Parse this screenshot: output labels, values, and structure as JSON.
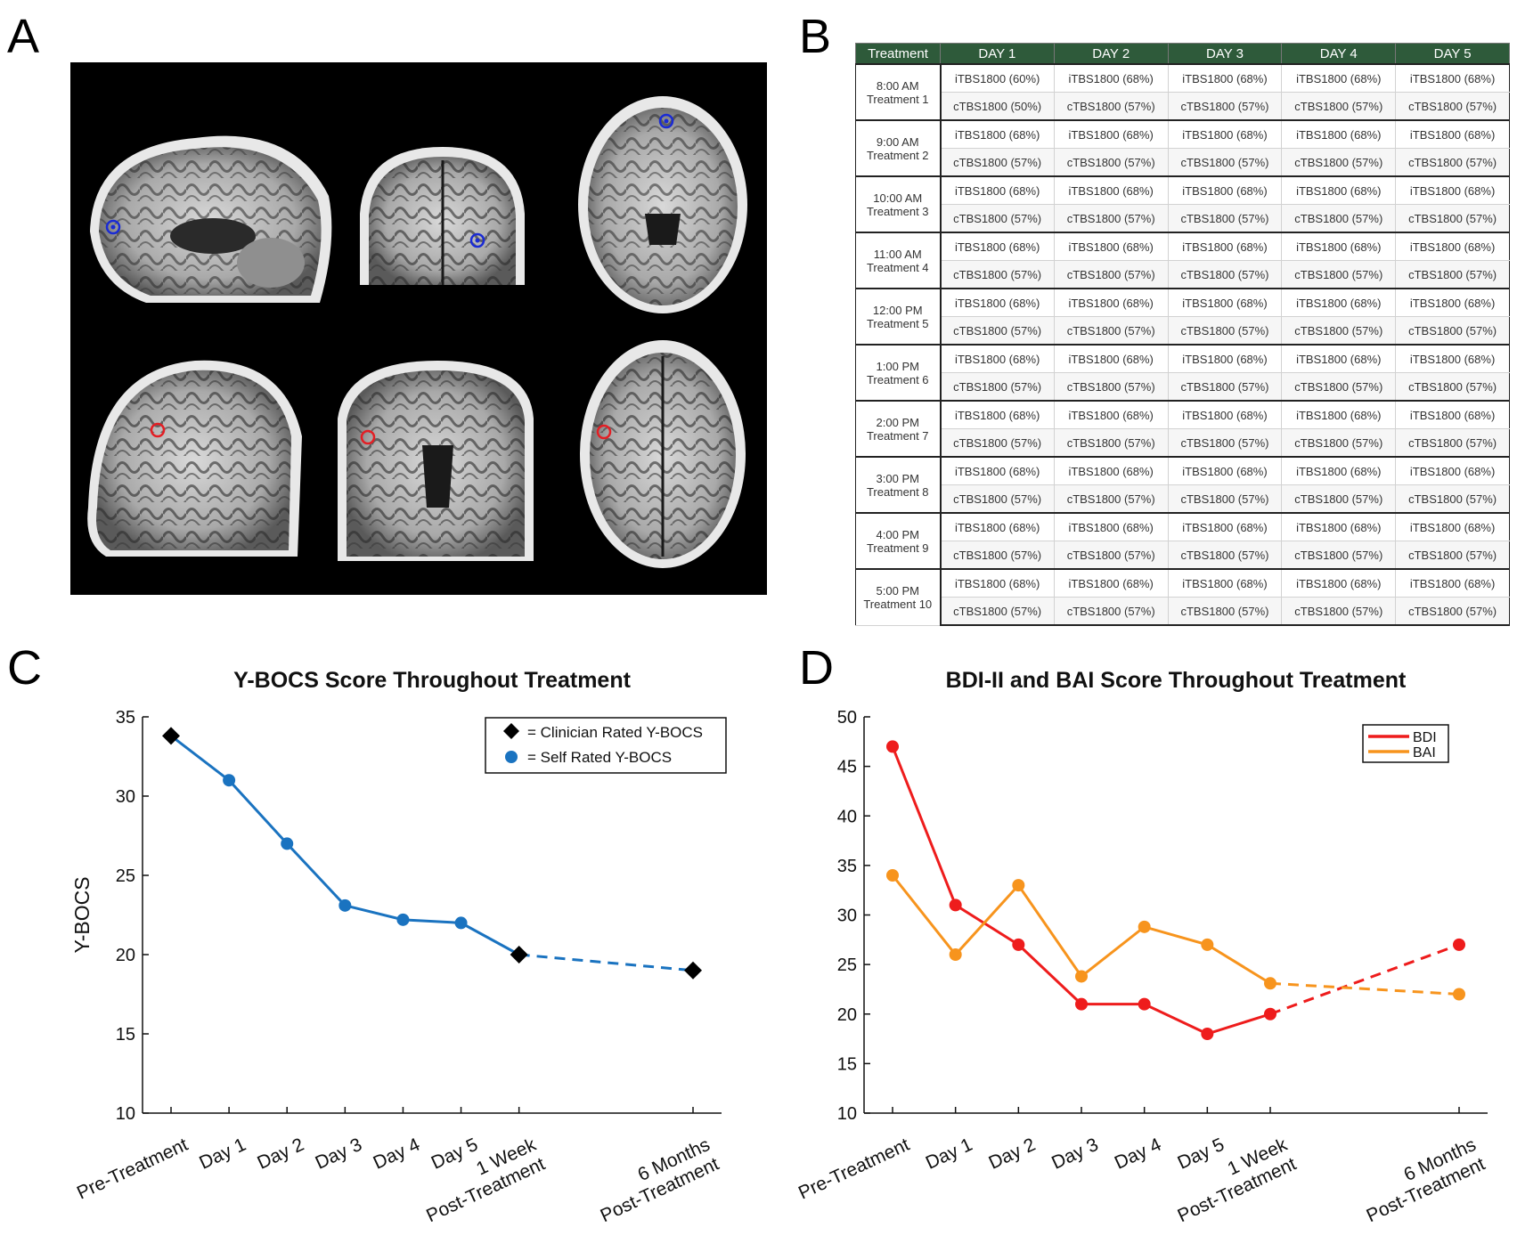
{
  "panels": {
    "a": "A",
    "b": "B",
    "c": "C",
    "d": "D"
  },
  "treatment_table": {
    "header": [
      "Treatment",
      "DAY 1",
      "DAY 2",
      "DAY 3",
      "DAY 4",
      "DAY 5"
    ],
    "slots": [
      {
        "time": "8:00 AM",
        "label": "Treatment 1",
        "itbs": [
          "iTBS1800 (60%)",
          "iTBS1800 (68%)",
          "iTBS1800 (68%)",
          "iTBS1800 (68%)",
          "iTBS1800 (68%)"
        ],
        "ctbs": [
          "cTBS1800 (50%)",
          "cTBS1800 (57%)",
          "cTBS1800 (57%)",
          "cTBS1800 (57%)",
          "cTBS1800 (57%)"
        ]
      },
      {
        "time": "9:00 AM",
        "label": "Treatment 2",
        "itbs": [
          "iTBS1800 (68%)",
          "iTBS1800 (68%)",
          "iTBS1800 (68%)",
          "iTBS1800 (68%)",
          "iTBS1800 (68%)"
        ],
        "ctbs": [
          "cTBS1800 (57%)",
          "cTBS1800 (57%)",
          "cTBS1800 (57%)",
          "cTBS1800 (57%)",
          "cTBS1800 (57%)"
        ]
      },
      {
        "time": "10:00 AM",
        "label": "Treatment 3",
        "itbs": [
          "iTBS1800 (68%)",
          "iTBS1800 (68%)",
          "iTBS1800 (68%)",
          "iTBS1800 (68%)",
          "iTBS1800 (68%)"
        ],
        "ctbs": [
          "cTBS1800 (57%)",
          "cTBS1800 (57%)",
          "cTBS1800 (57%)",
          "cTBS1800 (57%)",
          "cTBS1800 (57%)"
        ]
      },
      {
        "time": "11:00 AM",
        "label": "Treatment 4",
        "itbs": [
          "iTBS1800 (68%)",
          "iTBS1800 (68%)",
          "iTBS1800 (68%)",
          "iTBS1800 (68%)",
          "iTBS1800 (68%)"
        ],
        "ctbs": [
          "cTBS1800 (57%)",
          "cTBS1800 (57%)",
          "cTBS1800 (57%)",
          "cTBS1800 (57%)",
          "cTBS1800 (57%)"
        ]
      },
      {
        "time": "12:00 PM",
        "label": "Treatment 5",
        "itbs": [
          "iTBS1800 (68%)",
          "iTBS1800 (68%)",
          "iTBS1800 (68%)",
          "iTBS1800 (68%)",
          "iTBS1800 (68%)"
        ],
        "ctbs": [
          "cTBS1800 (57%)",
          "cTBS1800 (57%)",
          "cTBS1800 (57%)",
          "cTBS1800 (57%)",
          "cTBS1800 (57%)"
        ]
      },
      {
        "time": "1:00 PM",
        "label": "Treatment 6",
        "itbs": [
          "iTBS1800 (68%)",
          "iTBS1800 (68%)",
          "iTBS1800 (68%)",
          "iTBS1800 (68%)",
          "iTBS1800 (68%)"
        ],
        "ctbs": [
          "cTBS1800 (57%)",
          "cTBS1800 (57%)",
          "cTBS1800 (57%)",
          "cTBS1800 (57%)",
          "cTBS1800 (57%)"
        ]
      },
      {
        "time": "2:00 PM",
        "label": "Treatment 7",
        "itbs": [
          "iTBS1800 (68%)",
          "iTBS1800 (68%)",
          "iTBS1800 (68%)",
          "iTBS1800 (68%)",
          "iTBS1800 (68%)"
        ],
        "ctbs": [
          "cTBS1800 (57%)",
          "cTBS1800 (57%)",
          "cTBS1800 (57%)",
          "cTBS1800 (57%)",
          "cTBS1800 (57%)"
        ]
      },
      {
        "time": "3:00 PM",
        "label": "Treatment 8",
        "itbs": [
          "iTBS1800 (68%)",
          "iTBS1800 (68%)",
          "iTBS1800 (68%)",
          "iTBS1800 (68%)",
          "iTBS1800 (68%)"
        ],
        "ctbs": [
          "cTBS1800 (57%)",
          "cTBS1800 (57%)",
          "cTBS1800 (57%)",
          "cTBS1800 (57%)",
          "cTBS1800 (57%)"
        ]
      },
      {
        "time": "4:00 PM",
        "label": "Treatment 9",
        "itbs": [
          "iTBS1800 (68%)",
          "iTBS1800 (68%)",
          "iTBS1800 (68%)",
          "iTBS1800 (68%)",
          "iTBS1800 (68%)"
        ],
        "ctbs": [
          "cTBS1800 (57%)",
          "cTBS1800 (57%)",
          "cTBS1800 (57%)",
          "cTBS1800 (57%)",
          "cTBS1800 (57%)"
        ]
      },
      {
        "time": "5:00 PM",
        "label": "Treatment 10",
        "itbs": [
          "iTBS1800 (68%)",
          "iTBS1800 (68%)",
          "iTBS1800 (68%)",
          "iTBS1800 (68%)",
          "iTBS1800 (68%)"
        ],
        "ctbs": [
          "cTBS1800 (57%)",
          "cTBS1800 (57%)",
          "cTBS1800 (57%)",
          "cTBS1800 (57%)",
          "cTBS1800 (57%)"
        ]
      }
    ]
  },
  "colors": {
    "table_header": "#2e5a3a",
    "ybocs": "#1a73c0",
    "bdi": "#ee1c1c",
    "bai": "#f7941d",
    "marker_blue": "#1a2bd4",
    "marker_red": "#e31e24"
  },
  "chart_data": [
    {
      "type": "line",
      "title": "Y-BOCS Score Throughout Treatment",
      "ylabel": "Y-BOCS",
      "xlabel": "",
      "ylim": [
        10,
        35
      ],
      "yticks": [
        10,
        15,
        20,
        25,
        30,
        35
      ],
      "categories": [
        [
          "Pre-Treatment"
        ],
        [
          "Day 1"
        ],
        [
          "Day 2"
        ],
        [
          "Day 3"
        ],
        [
          "Day 4"
        ],
        [
          "Day 5"
        ],
        [
          "1 Week",
          "Post-Treatment"
        ],
        [
          "6 Months",
          "Post-Treatment"
        ]
      ],
      "x": [
        0,
        1,
        2,
        3,
        4,
        5,
        6,
        9
      ],
      "series": [
        {
          "name": "Y-BOCS",
          "values": [
            33.8,
            31,
            27,
            23.1,
            22.2,
            22,
            20,
            19
          ],
          "solid_until_index": 6
        }
      ],
      "clinician_indices": [
        0,
        6,
        7
      ],
      "legend": {
        "position": "top-right",
        "entries": [
          "= Clinician Rated Y-BOCS",
          "= Self Rated Y-BOCS"
        ]
      }
    },
    {
      "type": "line",
      "title": "BDI-II and BAI Score Throughout Treatment",
      "ylabel": "",
      "xlabel": "",
      "ylim": [
        10,
        50
      ],
      "yticks": [
        10,
        15,
        20,
        25,
        30,
        35,
        40,
        45,
        50
      ],
      "categories": [
        [
          "Pre-Treatment"
        ],
        [
          "Day 1"
        ],
        [
          "Day 2"
        ],
        [
          "Day 3"
        ],
        [
          "Day 4"
        ],
        [
          "Day 5"
        ],
        [
          "1 Week",
          "Post-Treatment"
        ],
        [
          "6 Months",
          "Post-Treatment"
        ]
      ],
      "x": [
        0,
        1,
        2,
        3,
        4,
        5,
        6,
        9
      ],
      "series": [
        {
          "name": "BDI",
          "values": [
            47,
            31,
            27,
            21,
            21,
            18,
            20,
            27
          ],
          "solid_until_index": 6
        },
        {
          "name": "BAI",
          "values": [
            34,
            26,
            33,
            23.8,
            28.8,
            27,
            23.1,
            22
          ],
          "solid_until_index": 6
        }
      ],
      "legend": {
        "position": "top-right",
        "entries": [
          "BDI",
          "BAI"
        ]
      }
    }
  ]
}
